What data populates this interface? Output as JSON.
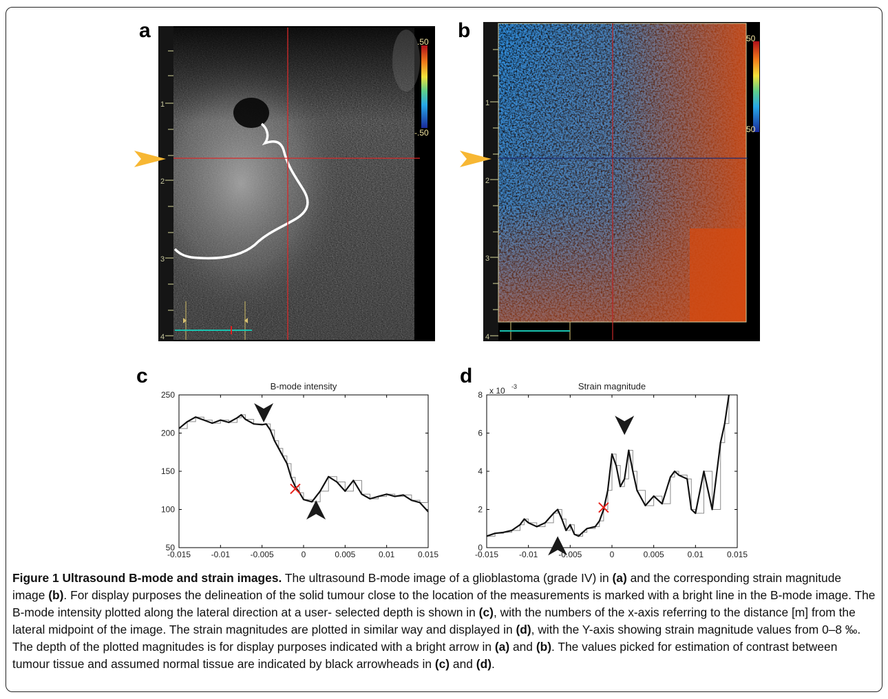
{
  "panels": {
    "a": {
      "letter": "a",
      "depth_ticks": [
        "1",
        "2",
        "3",
        "4"
      ],
      "colorbar": {
        "top": ".50",
        "bottom": "-.50"
      }
    },
    "b": {
      "letter": "b",
      "depth_ticks": [
        "1",
        "2",
        "3",
        "4"
      ],
      "colorbar": {
        "top": "50",
        "bottom": "50"
      }
    },
    "c": {
      "letter": "c"
    },
    "d": {
      "letter": "d"
    }
  },
  "colors": {
    "arrow": "#f7b733",
    "crosshair": "#d62a2a",
    "tumour_outline": "#ffffff",
    "marker_x": "#e8221b"
  },
  "chart_data": [
    {
      "type": "line",
      "title": "B-mode intensity",
      "xlabel": "",
      "ylabel": "",
      "xlim": [
        -0.015,
        0.015
      ],
      "ylim": [
        50,
        250
      ],
      "x_ticks": [
        "-0.015",
        "-0.01",
        "-0.005",
        "0",
        "0.005",
        "0.01",
        "0.015"
      ],
      "y_ticks": [
        "50",
        "100",
        "150",
        "200",
        "250"
      ],
      "series": [
        {
          "x": [
            -0.015,
            -0.014,
            -0.013,
            -0.012,
            -0.011,
            -0.01,
            -0.009,
            -0.008,
            -0.0075,
            -0.007,
            -0.006,
            -0.005,
            -0.0045,
            -0.004,
            -0.0035,
            -0.003,
            -0.0025,
            -0.002,
            -0.0015,
            -0.001,
            -0.0005,
            0,
            0.001,
            0.002,
            0.003,
            0.004,
            0.005,
            0.006,
            0.007,
            0.008,
            0.009,
            0.01,
            0.011,
            0.012,
            0.013,
            0.014,
            0.015
          ],
          "y": [
            206,
            215,
            221,
            217,
            213,
            217,
            214,
            220,
            224,
            218,
            212,
            211,
            212,
            204,
            190,
            180,
            170,
            160,
            142,
            130,
            122,
            113,
            110,
            124,
            143,
            136,
            124,
            138,
            120,
            114,
            117,
            120,
            117,
            119,
            112,
            109,
            97
          ]
        }
      ],
      "annotations": {
        "arrowheads_at": [
          [
            -0.0048,
            214
          ],
          [
            0.0015,
            112
          ]
        ],
        "cross_marker": [
          -0.001,
          127
        ]
      }
    },
    {
      "type": "line",
      "title": "Strain magnitude",
      "xlabel": "",
      "ylabel": "",
      "exponent": "x 10",
      "exponent_power": "-3",
      "xlim": [
        -0.015,
        0.015
      ],
      "ylim": [
        0,
        8
      ],
      "x_ticks": [
        "-0.015",
        "-0.01",
        "-0.005",
        "0",
        "0.005",
        "0.01",
        "0.015"
      ],
      "y_ticks": [
        "0",
        "2",
        "4",
        "6",
        "8"
      ],
      "series": [
        {
          "x": [
            -0.015,
            -0.014,
            -0.013,
            -0.012,
            -0.011,
            -0.0105,
            -0.01,
            -0.009,
            -0.008,
            -0.007,
            -0.0065,
            -0.006,
            -0.0055,
            -0.005,
            -0.0045,
            -0.004,
            -0.0035,
            -0.003,
            -0.002,
            -0.0015,
            -0.001,
            -0.0005,
            0,
            0.0005,
            0.001,
            0.0015,
            0.002,
            0.0025,
            0.003,
            0.004,
            0.005,
            0.006,
            0.007,
            0.0075,
            0.008,
            0.009,
            0.0095,
            0.01,
            0.011,
            0.012,
            0.013,
            0.0135,
            0.014
          ],
          "y": [
            0.6,
            0.75,
            0.8,
            0.9,
            1.2,
            1.5,
            1.3,
            1.1,
            1.3,
            1.8,
            2.0,
            1.5,
            0.9,
            1.2,
            0.7,
            0.6,
            0.8,
            1.0,
            1.1,
            1.4,
            2.0,
            3.0,
            4.9,
            4.3,
            3.2,
            3.6,
            5.1,
            4.0,
            3.0,
            2.2,
            2.7,
            2.3,
            3.7,
            4.0,
            3.8,
            3.6,
            2.0,
            1.8,
            4.0,
            2.0,
            5.5,
            6.5,
            8.0
          ]
        }
      ],
      "annotations": {
        "arrowheads_at": [
          [
            0.0015,
            5.9
          ],
          [
            -0.0065,
            0.6
          ]
        ],
        "cross_marker": [
          -0.001,
          2.1
        ]
      }
    }
  ],
  "caption": {
    "label": "Figure 1 Ultrasound B-mode and strain images.",
    "parts": [
      {
        "t": " The ultrasound B-mode image of a glioblastoma (grade IV) in ",
        "b": false
      },
      {
        "t": "(a)",
        "b": true
      },
      {
        "t": " and the corresponding strain magnitude image ",
        "b": false
      },
      {
        "t": "(b)",
        "b": true
      },
      {
        "t": ". For display purposes the delineation of the solid tumour close to the location of the measurements is marked with a bright line in the B-mode image. The B-mode intensity plotted along the lateral direction at a user- selected depth is shown in ",
        "b": false
      },
      {
        "t": "(c)",
        "b": true
      },
      {
        "t": ", with the numbers of the x-axis referring to the distance [m] from the lateral midpoint of the image. The strain magnitudes are plotted in similar way and displayed in ",
        "b": false
      },
      {
        "t": "(d)",
        "b": true
      },
      {
        "t": ", with the Y-axis showing strain magnitude values from 0–8 ‰. The depth of the plotted magnitudes is for display purposes indicated with a bright arrow in ",
        "b": false
      },
      {
        "t": "(a)",
        "b": true
      },
      {
        "t": " and ",
        "b": false
      },
      {
        "t": "(b)",
        "b": true
      },
      {
        "t": ". The values picked for estimation of contrast between tumour tissue and assumed normal tissue are indicated by black arrowheads in ",
        "b": false
      },
      {
        "t": "(c)",
        "b": true
      },
      {
        "t": " and ",
        "b": false
      },
      {
        "t": "(d)",
        "b": true
      },
      {
        "t": ".",
        "b": false
      }
    ]
  }
}
